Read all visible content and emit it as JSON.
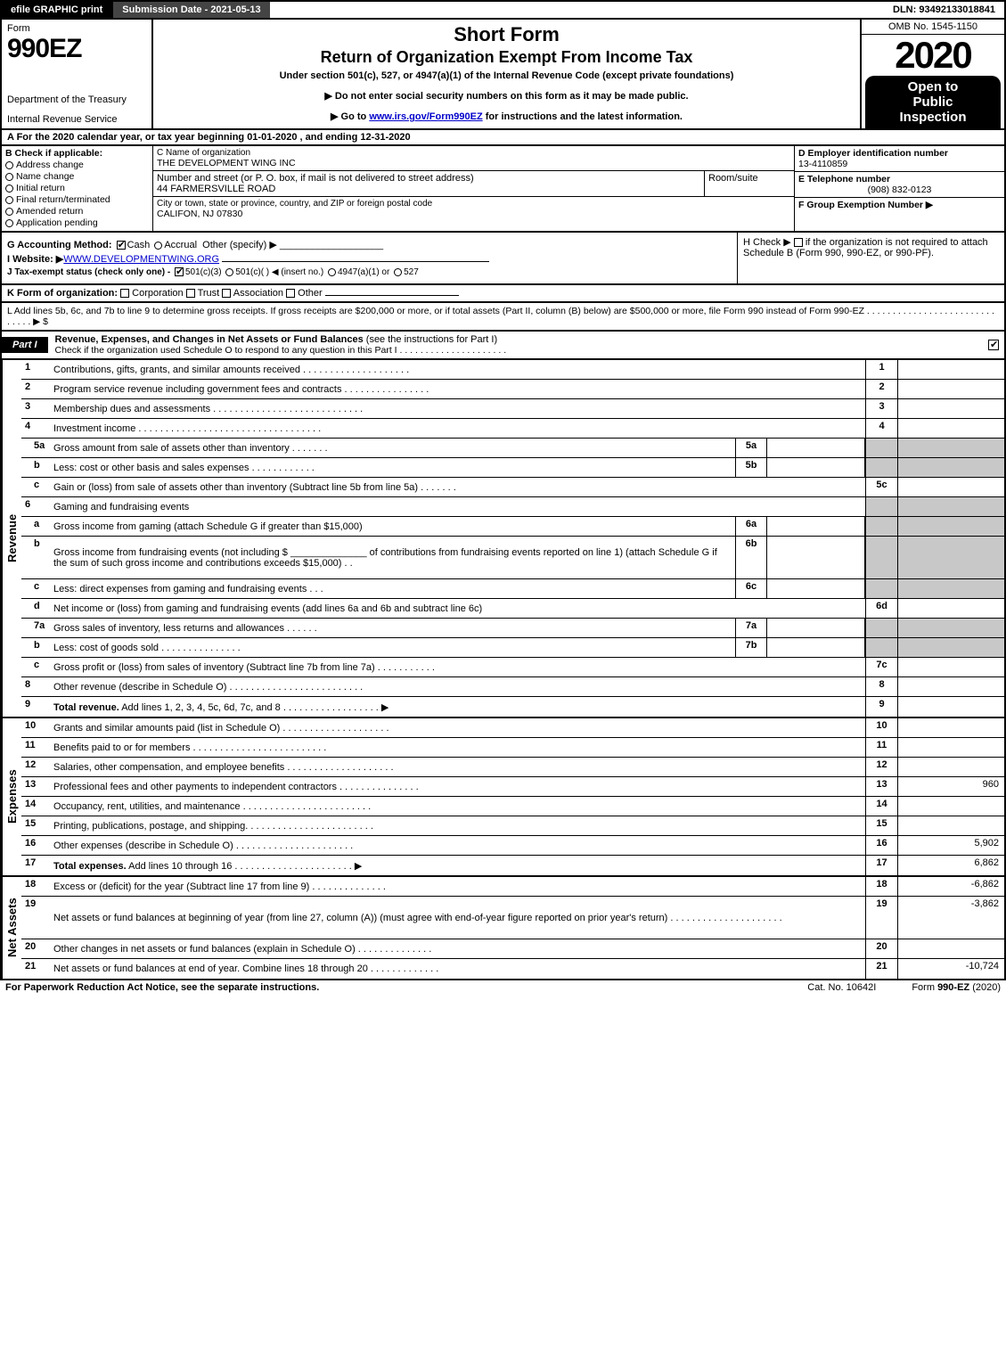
{
  "colors": {
    "black": "#000000",
    "white": "#ffffff",
    "dark_gray": "#444444",
    "shaded": "#c8c8c8",
    "link": "#0000cc"
  },
  "top_bar": {
    "efile": "efile GRAPHIC print",
    "submission": "Submission Date - 2021-05-13",
    "dln": "DLN: 93492133018841"
  },
  "header": {
    "form_label": "Form",
    "form_number": "990EZ",
    "dept": "Department of the Treasury",
    "irs": "Internal Revenue Service",
    "short_form": "Short Form",
    "title": "Return of Organization Exempt From Income Tax",
    "subtitle": "Under section 501(c), 527, or 4947(a)(1) of the Internal Revenue Code (except private foundations)",
    "note1": "▶ Do not enter social security numbers on this form as it may be made public.",
    "note2_pre": "▶ Go to ",
    "note2_link": "www.irs.gov/Form990EZ",
    "note2_post": " for instructions and the latest information.",
    "omb": "OMB No. 1545-1150",
    "year": "2020",
    "open1": "Open to",
    "open2": "Public",
    "open3": "Inspection"
  },
  "row_a": "A  For the 2020 calendar year, or tax year beginning 01-01-2020 , and ending 12-31-2020",
  "box_b": {
    "header": "B  Check if applicable:",
    "items": [
      "Address change",
      "Name change",
      "Initial return",
      "Final return/terminated",
      "Amended return",
      "Application pending"
    ]
  },
  "box_c": {
    "name_label": "C Name of organization",
    "name": "THE DEVELOPMENT WING INC",
    "street_label": "Number and street (or P. O. box, if mail is not delivered to street address)",
    "street": "44 FARMERSVILLE ROAD",
    "suite_label": "Room/suite",
    "city_label": "City or town, state or province, country, and ZIP or foreign postal code",
    "city": "CALIFON, NJ  07830"
  },
  "box_d": {
    "d_label": "D Employer identification number",
    "d_val": "13-4110859",
    "e_label": "E Telephone number",
    "e_val": "(908) 832-0123",
    "f_label": "F Group Exemption Number  ▶"
  },
  "mid": {
    "g": "G Accounting Method:",
    "g_cash": "Cash",
    "g_accrual": "Accrual",
    "g_other": "Other (specify) ▶",
    "i_pre": "I Website: ▶",
    "i_val": "WWW.DEVELOPMENTWING.ORG",
    "j": "J Tax-exempt status (check only one) -",
    "j_1": "501(c)(3)",
    "j_2": "501(c)(   ) ◀ (insert no.)",
    "j_3": "4947(a)(1) or",
    "j_4": "527",
    "h_pre": "H  Check ▶",
    "h_post": "if the organization is not required to attach Schedule B (Form 990, 990-EZ, or 990-PF)."
  },
  "line_k": {
    "pre": "K Form of organization:",
    "opts": [
      "Corporation",
      "Trust",
      "Association",
      "Other"
    ]
  },
  "line_l": "L Add lines 5b, 6c, and 7b to line 9 to determine gross receipts. If gross receipts are $200,000 or more, or if total assets (Part II, column (B) below) are $500,000 or more, file Form 990 instead of Form 990-EZ  .  .  .  .  .  .  .  .  .  .  .  .  .  .  .  .  .  .  .  .  .  .  .  .  .  .  .  .  .  .  ▶ $",
  "part1": {
    "tag": "Part I",
    "title": "Revenue, Expenses, and Changes in Net Assets or Fund Balances ",
    "title_paren": "(see the instructions for Part I)",
    "sub": "Check if the organization used Schedule O to respond to any question in this Part I  .  .  .  .  .  .  .  .  .  .  .  .  .  .  .  .  .  .  .  .  ."
  },
  "revenue_label": "Revenue",
  "expenses_label": "Expenses",
  "netassets_label": "Net Assets",
  "revenue_rows": [
    {
      "n": "1",
      "d": "Contributions, gifts, grants, and similar amounts received  .  .  .  .  .  .  .  .  .  .  .  .  .  .  .  .  .  .  .  .",
      "rn": "1",
      "rv": ""
    },
    {
      "n": "2",
      "d": "Program service revenue including government fees and contracts  .  .  .  .  .  .  .  .  .  .  .  .  .  .  .  .",
      "rn": "2",
      "rv": ""
    },
    {
      "n": "3",
      "d": "Membership dues and assessments  .  .  .  .  .  .  .  .  .  .  .  .  .  .  .  .  .  .  .  .  .  .  .  .  .  .  .  .",
      "rn": "3",
      "rv": ""
    },
    {
      "n": "4",
      "d": "Investment income  .  .  .  .  .  .  .  .  .  .  .  .  .  .  .  .  .  .  .  .  .  .  .  .  .  .  .  .  .  .  .  .  .  .",
      "rn": "4",
      "rv": ""
    },
    {
      "n": "5a",
      "sub": true,
      "d": "Gross amount from sale of assets other than inventory  .  .  .  .  .  .  .",
      "mc": "5a",
      "mv": "",
      "shaded": true
    },
    {
      "n": "b",
      "sub": true,
      "d": "Less: cost or other basis and sales expenses  .  .  .  .  .  .  .  .  .  .  .  .",
      "mc": "5b",
      "mv": "",
      "shaded": true
    },
    {
      "n": "c",
      "sub": true,
      "d": "Gain or (loss) from sale of assets other than inventory (Subtract line 5b from line 5a)  .  .  .  .  .  .  .",
      "rn": "5c",
      "rv": ""
    },
    {
      "n": "6",
      "d": "Gaming and fundraising events",
      "shaded": true,
      "noline": true
    },
    {
      "n": "a",
      "sub": true,
      "d": "Gross income from gaming (attach Schedule G if greater than $15,000)",
      "mc": "6a",
      "mv": "",
      "shaded": true
    },
    {
      "n": "b",
      "sub": true,
      "d": "Gross income from fundraising events (not including $ ______________ of contributions from fundraising events reported on line 1) (attach Schedule G if the sum of such gross income and contributions exceeds $15,000)   .  .",
      "mc": "6b",
      "mv": "",
      "shaded": true,
      "tall": true
    },
    {
      "n": "c",
      "sub": true,
      "d": "Less: direct expenses from gaming and fundraising events    .  .  .",
      "mc": "6c",
      "mv": "",
      "shaded": true
    },
    {
      "n": "d",
      "sub": true,
      "d": "Net income or (loss) from gaming and fundraising events (add lines 6a and 6b and subtract line 6c)",
      "rn": "6d",
      "rv": ""
    },
    {
      "n": "7a",
      "sub": true,
      "d": "Gross sales of inventory, less returns and allowances  .  .  .  .  .  .",
      "mc": "7a",
      "mv": "",
      "shaded": true
    },
    {
      "n": "b",
      "sub": true,
      "d": "Less: cost of goods sold          .  .  .  .  .  .  .  .  .  .  .  .  .  .  .",
      "mc": "7b",
      "mv": "",
      "shaded": true
    },
    {
      "n": "c",
      "sub": true,
      "d": "Gross profit or (loss) from sales of inventory (Subtract line 7b from line 7a)  .  .  .  .  .  .  .  .  .  .  .",
      "rn": "7c",
      "rv": ""
    },
    {
      "n": "8",
      "d": "Other revenue (describe in Schedule O)  .  .  .  .  .  .  .  .  .  .  .  .  .  .  .  .  .  .  .  .  .  .  .  .  .",
      "rn": "8",
      "rv": ""
    },
    {
      "n": "9",
      "d": "Total revenue. Add lines 1, 2, 3, 4, 5c, 6d, 7c, and 8   .  .  .  .  .  .  .  .  .  .  .  .  .  .  .  .  .  .   ▶",
      "rn": "9",
      "rv": "",
      "bold": true
    }
  ],
  "expense_rows": [
    {
      "n": "10",
      "d": "Grants and similar amounts paid (list in Schedule O)  .  .  .  .  .  .  .  .  .  .  .  .  .  .  .  .  .  .  .  .",
      "rn": "10",
      "rv": ""
    },
    {
      "n": "11",
      "d": "Benefits paid to or for members       .  .  .  .  .  .  .  .  .  .  .  .  .  .  .  .  .  .  .  .  .  .  .  .  .",
      "rn": "11",
      "rv": ""
    },
    {
      "n": "12",
      "d": "Salaries, other compensation, and employee benefits  .  .  .  .  .  .  .  .  .  .  .  .  .  .  .  .  .  .  .  .",
      "rn": "12",
      "rv": ""
    },
    {
      "n": "13",
      "d": "Professional fees and other payments to independent contractors  .  .  .  .  .  .  .  .  .  .  .  .  .  .  .",
      "rn": "13",
      "rv": "960"
    },
    {
      "n": "14",
      "d": "Occupancy, rent, utilities, and maintenance  .  .  .  .  .  .  .  .  .  .  .  .  .  .  .  .  .  .  .  .  .  .  .  .",
      "rn": "14",
      "rv": ""
    },
    {
      "n": "15",
      "d": "Printing, publications, postage, and shipping.  .  .  .  .  .  .  .  .  .  .  .  .  .  .  .  .  .  .  .  .  .  .  .",
      "rn": "15",
      "rv": ""
    },
    {
      "n": "16",
      "d": "Other expenses (describe in Schedule O)       .  .  .  .  .  .  .  .  .  .  .  .  .  .  .  .  .  .  .  .  .  .",
      "rn": "16",
      "rv": "5,902"
    },
    {
      "n": "17",
      "d": "Total expenses. Add lines 10 through 16     .  .  .  .  .  .  .  .  .  .  .  .  .  .  .  .  .  .  .  .  .  .  ▶",
      "rn": "17",
      "rv": "6,862",
      "bold": true
    }
  ],
  "netasset_rows": [
    {
      "n": "18",
      "d": "Excess or (deficit) for the year (Subtract line 17 from line 9)          .  .  .  .  .  .  .  .  .  .  .  .  .  .",
      "rn": "18",
      "rv": "-6,862"
    },
    {
      "n": "19",
      "d": "Net assets or fund balances at beginning of year (from line 27, column (A)) (must agree with end-of-year figure reported on prior year's return)  .  .  .  .  .  .  .  .  .  .  .  .  .  .  .  .  .  .  .  .  .",
      "rn": "19",
      "rv": "-3,862",
      "tall": true
    },
    {
      "n": "20",
      "d": "Other changes in net assets or fund balances (explain in Schedule O)  .  .  .  .  .  .  .  .  .  .  .  .  .  .",
      "rn": "20",
      "rv": ""
    },
    {
      "n": "21",
      "d": "Net assets or fund balances at end of year. Combine lines 18 through 20  .  .  .  .  .  .  .  .  .  .  .  .  .",
      "rn": "21",
      "rv": "-10,724"
    }
  ],
  "footer": {
    "left": "For Paperwork Reduction Act Notice, see the separate instructions.",
    "center": "Cat. No. 10642I",
    "right_pre": "Form ",
    "right_bold": "990-EZ",
    "right_post": " (2020)"
  }
}
